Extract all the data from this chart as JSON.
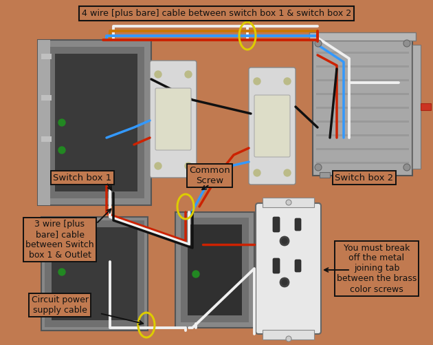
{
  "bg_color": "#C17A50",
  "top_label": "4 wire [plus bare] cable between switch box 1 & switch box 2",
  "ann_switch1": "Switch box 1",
  "ann_switch2": "Switch box 2",
  "ann_common": "Common\nScrew",
  "ann_3wire": "3 wire [plus\nbare] cable\nbetween Switch\nbox 1 & Outlet",
  "ann_circuit": "Circuit power\nsupply cable",
  "ann_break": "You must break\noff the metal\njoining tab\nbetween the brass\ncolor screws",
  "wire_red": "#CC2200",
  "wire_blue": "#3399FF",
  "wire_white": "#F0F0F0",
  "wire_black": "#111111",
  "wire_orange": "#CC7700",
  "yellow_stroke": "#DDCC00",
  "box_edge": "#111111",
  "label_fs": 9.5,
  "label_fs_small": 9.0
}
